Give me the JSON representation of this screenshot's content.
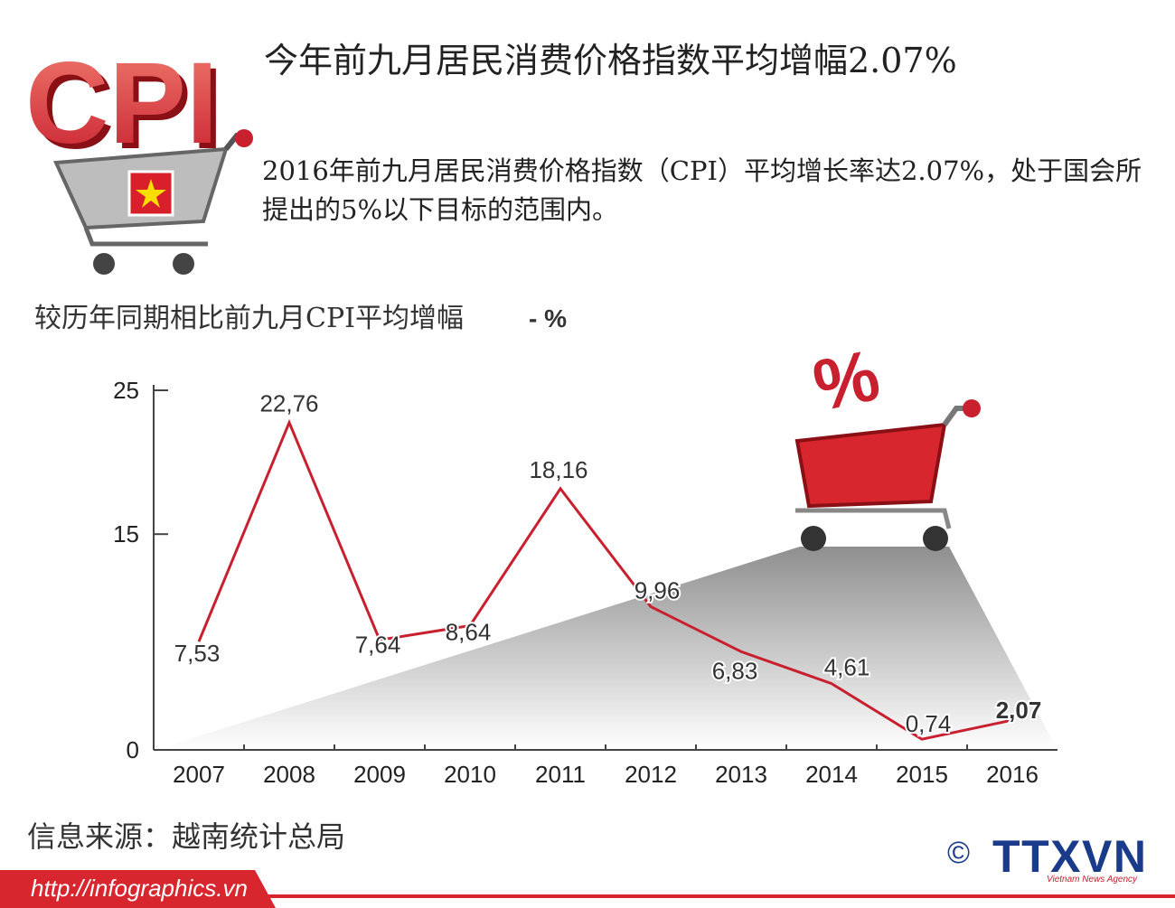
{
  "header": {
    "logo": "CPI",
    "title": "今年前九月居民消费价格指数平均增幅2.07%",
    "summary": "2016年前九月居民消费价格指数（CPI）平均增长率达2.07%，处于国会所提出的5%以下目标的范围内。"
  },
  "chart_data": {
    "type": "line",
    "ylabel": "较历年同期相比前九月CPI平均增幅",
    "ylabel_unit": "- %",
    "cart_badge": "%",
    "categories": [
      "2007",
      "2008",
      "2009",
      "2010",
      "2011",
      "2012",
      "2013",
      "2014",
      "2015",
      "2016"
    ],
    "series": [
      {
        "name": "CPI",
        "color": "#c8202f",
        "values": [
          7.53,
          22.76,
          7.64,
          8.64,
          18.16,
          9.96,
          6.83,
          4.61,
          0.74,
          2.07
        ],
        "value_labels": [
          "7,53",
          "22,76",
          "7,64",
          "8,64",
          "18,16",
          "9,96",
          "6,83",
          "4,61",
          "0,74",
          "2,07"
        ]
      }
    ],
    "ylim": [
      0,
      25
    ],
    "yticks": [
      0,
      15,
      25
    ]
  },
  "footer": {
    "source": "信息来源：越南统计总局",
    "url": "http://infographics.vn",
    "copyright": "©",
    "agency": "TTXVN",
    "agency_sub": "Vietnam News Agency"
  }
}
